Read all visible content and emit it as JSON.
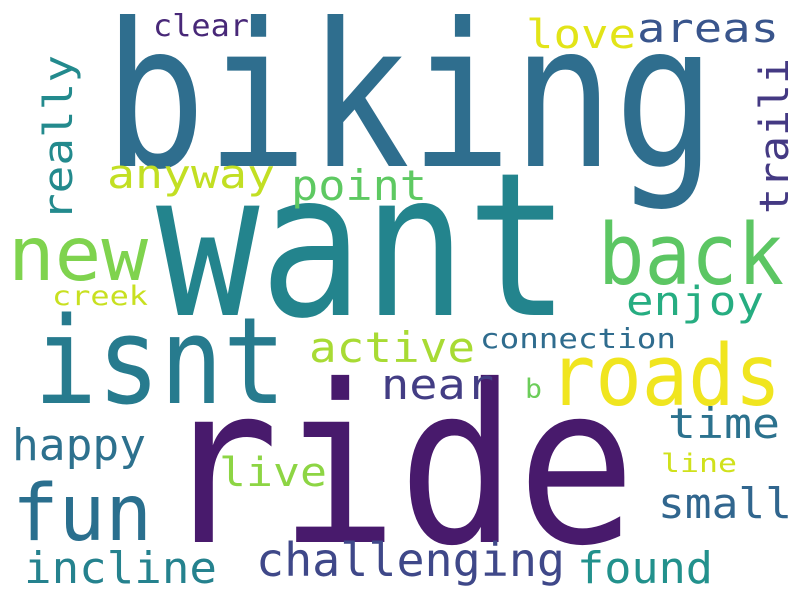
{
  "words": [
    {
      "text": "biking",
      "color": "#2f6e8e"
    },
    {
      "text": "want",
      "color": "#23848d"
    },
    {
      "text": "ride",
      "color": "#481a6c"
    },
    {
      "text": "isnt",
      "color": "#277b8e"
    },
    {
      "text": "roads",
      "color": "#f0e51f"
    },
    {
      "text": "back",
      "color": "#5cc663"
    },
    {
      "text": "new",
      "color": "#7fd34e"
    },
    {
      "text": "fun",
      "color": "#2a6f8e"
    },
    {
      "text": "challenging",
      "color": "#3f4889"
    },
    {
      "text": "incline",
      "color": "#25828e"
    },
    {
      "text": "found",
      "color": "#22918c"
    },
    {
      "text": "happy",
      "color": "#2d718e"
    },
    {
      "text": "small",
      "color": "#31668e"
    },
    {
      "text": "time",
      "color": "#2c728e"
    },
    {
      "text": "live",
      "color": "#8dd544"
    },
    {
      "text": "near",
      "color": "#433d84"
    },
    {
      "text": "active",
      "color": "#a8db34"
    },
    {
      "text": "enjoy",
      "color": "#26ad81"
    },
    {
      "text": "connection",
      "color": "#2f6c8e"
    },
    {
      "text": "point",
      "color": "#5ec962"
    },
    {
      "text": "anyway",
      "color": "#c2df23"
    },
    {
      "text": "really",
      "color": "#238a8d"
    },
    {
      "text": "love",
      "color": "#e2e418"
    },
    {
      "text": "areas",
      "color": "#39558c"
    },
    {
      "text": "traili",
      "color": "#443983"
    },
    {
      "text": "clear",
      "color": "#482878"
    },
    {
      "text": "creek",
      "color": "#c8e020"
    },
    {
      "text": "line",
      "color": "#d0e11c"
    },
    {
      "text": "b",
      "color": "#6ccd5a"
    }
  ]
}
